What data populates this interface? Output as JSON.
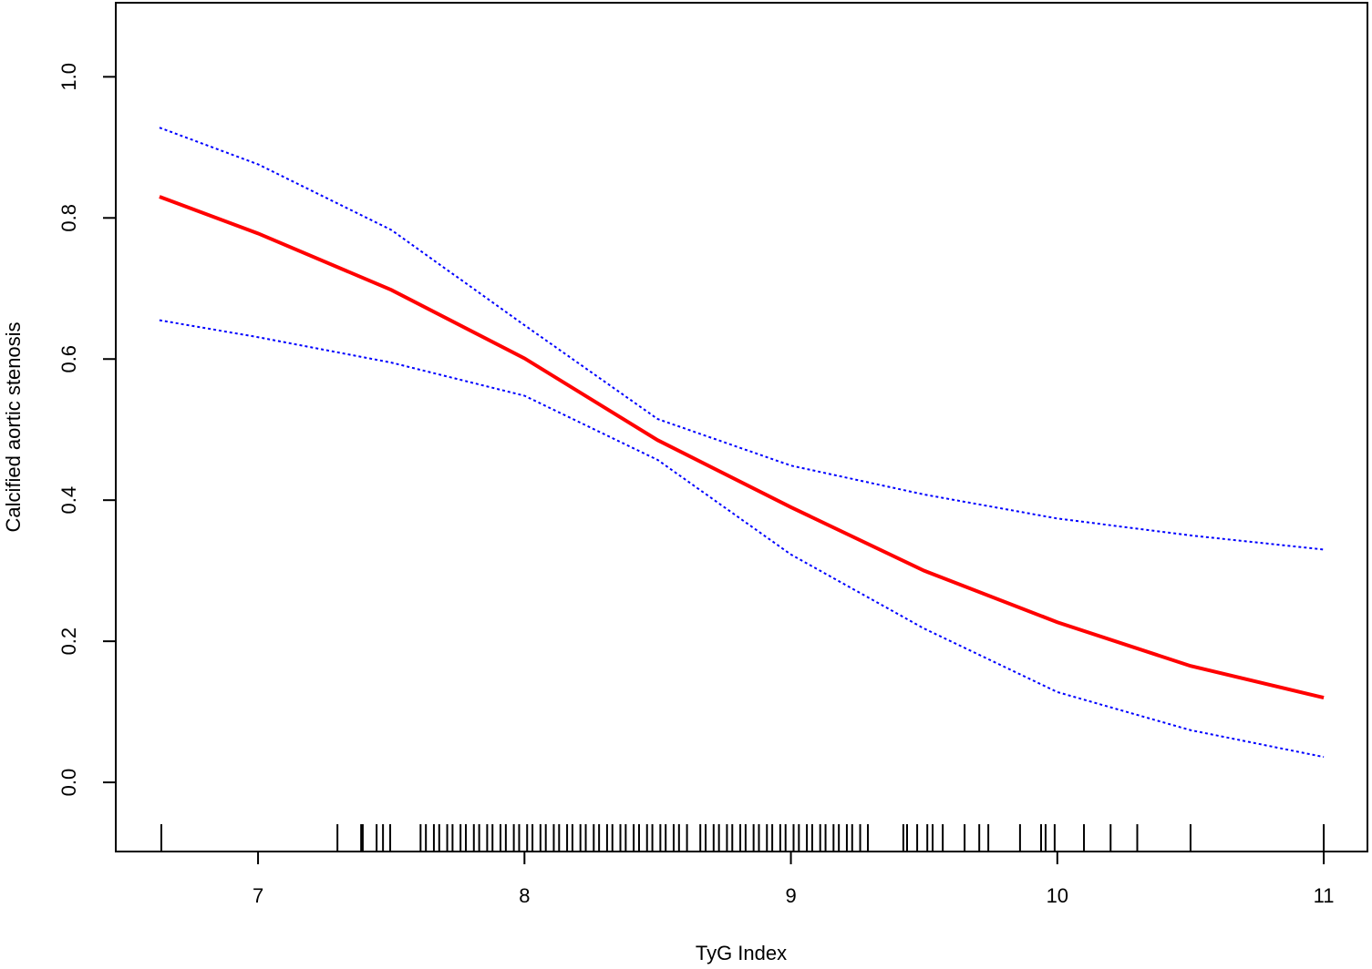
{
  "chart_data": {
    "type": "line",
    "x_label": "TyG Index",
    "y_label": "Calcified aortic stenosis",
    "x": [
      6.63,
      7.0,
      7.5,
      8.0,
      8.5,
      9.0,
      9.5,
      10.0,
      10.5,
      11.0
    ],
    "series": [
      {
        "color": "#ff0000",
        "dash": "solid",
        "values": [
          0.83,
          0.778,
          0.698,
          0.601,
          0.485,
          0.39,
          0.3,
          0.227,
          0.165,
          0.12
        ]
      },
      {
        "color": "#0000ff",
        "dash": "dotted",
        "values": [
          0.928,
          0.876,
          0.783,
          0.648,
          0.515,
          0.449,
          0.408,
          0.374,
          0.35,
          0.33
        ]
      },
      {
        "color": "#0000ff",
        "dash": "dotted",
        "values": [
          0.655,
          0.631,
          0.595,
          0.548,
          0.457,
          0.323,
          0.218,
          0.128,
          0.074,
          0.036
        ]
      }
    ],
    "rug": [
      6.637,
      7.298,
      7.387,
      7.393,
      7.445,
      7.469,
      7.496,
      7.61,
      7.63,
      7.66,
      7.68,
      7.71,
      7.73,
      7.76,
      7.78,
      7.81,
      7.83,
      7.86,
      7.88,
      7.91,
      7.93,
      7.96,
      7.98,
      8.01,
      8.03,
      8.06,
      8.08,
      8.11,
      8.13,
      8.16,
      8.18,
      8.21,
      8.23,
      8.26,
      8.28,
      8.31,
      8.33,
      8.36,
      8.38,
      8.41,
      8.43,
      8.46,
      8.48,
      8.51,
      8.53,
      8.56,
      8.58,
      8.61,
      8.66,
      8.68,
      8.71,
      8.73,
      8.76,
      8.78,
      8.81,
      8.83,
      8.86,
      8.88,
      8.91,
      8.93,
      8.96,
      8.98,
      9.01,
      9.03,
      9.06,
      9.08,
      9.11,
      9.13,
      9.16,
      9.18,
      9.21,
      9.23,
      9.26,
      9.289,
      9.422,
      9.436,
      9.474,
      9.512,
      9.532,
      9.57,
      9.652,
      9.707,
      9.741,
      9.86,
      9.939,
      9.956,
      9.99,
      10.1,
      10.2,
      10.3,
      10.5,
      11.0
    ],
    "xlim": [
      6.466,
      11.164
    ],
    "xticks": [
      7,
      8,
      9,
      10,
      11
    ],
    "ylim": [
      -0.098,
      1.105
    ],
    "yticks": [
      {
        "value": 0,
        "label": "0.0"
      },
      0.2,
      0.4,
      0.6,
      0.8,
      {
        "value": 1,
        "label": "1.0"
      }
    ]
  }
}
